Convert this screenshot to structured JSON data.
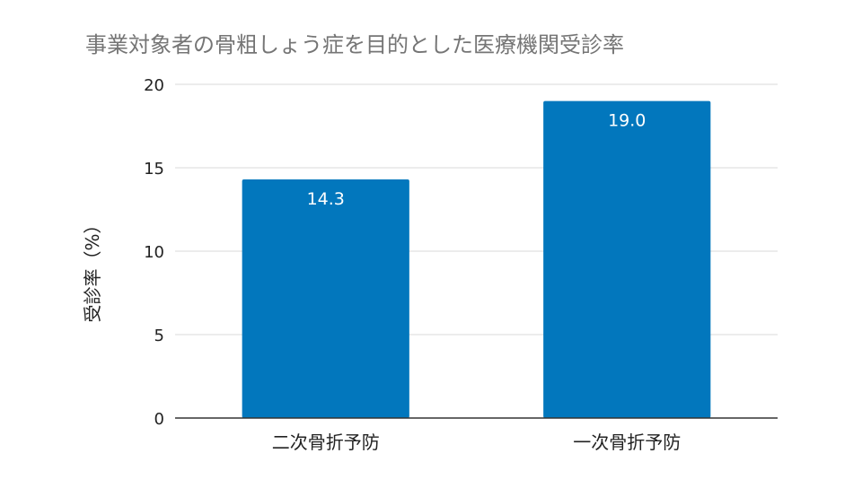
{
  "chart_data": {
    "type": "bar",
    "title": "事業対象者の骨粗しょう症を目的とした医療機関受診率",
    "ylabel": "受診率（%）",
    "xlabel": "",
    "categories": [
      "二次骨折予防",
      "一次骨折予防"
    ],
    "values": [
      14.3,
      19.0
    ],
    "data_labels": [
      "14.3",
      "19.0"
    ],
    "ylim": [
      0,
      20
    ],
    "yticks": [
      "0",
      "5",
      "10",
      "15",
      "20"
    ],
    "grid": true,
    "legend": "none",
    "colors": {
      "bar": "#0277BD",
      "grid": "#D9D9D9",
      "axis": "#333333",
      "title": "#757575",
      "text": "#222222",
      "label": "#FFFFFF"
    }
  }
}
